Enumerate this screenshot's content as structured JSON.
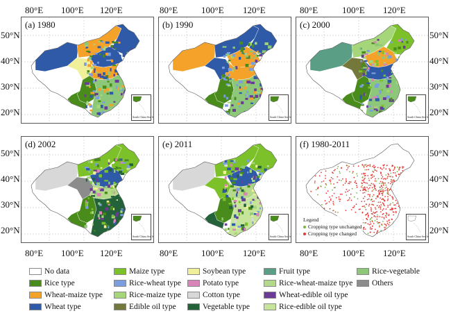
{
  "axes": {
    "top_lon": [
      "80°E",
      "100°E",
      "120°E"
    ],
    "bottom_lon": [
      "80°E",
      "100°E",
      "120°E"
    ],
    "lat": [
      "50°N",
      "40°N",
      "30°N",
      "20°N"
    ]
  },
  "panels": [
    {
      "label": "(a) 1980",
      "scheme": "a"
    },
    {
      "label": "(b) 1990",
      "scheme": "b"
    },
    {
      "label": "(c) 2000",
      "scheme": "c"
    },
    {
      "label": "(d) 2002",
      "scheme": "d"
    },
    {
      "label": "(e) 2011",
      "scheme": "e"
    },
    {
      "label": "(f) 1980-2011",
      "scheme": "f"
    }
  ],
  "inset_label": "South China Sea Islands",
  "change_legend": {
    "title": "Legend",
    "unchanged": {
      "label": "Cropping type unchanged",
      "color": "#7cb342"
    },
    "changed": {
      "label": "Cropping type changed",
      "color": "#e53935"
    }
  },
  "legend": [
    {
      "label": "No data",
      "color": "#ffffff"
    },
    {
      "label": "Rice type",
      "color": "#4a8c1c"
    },
    {
      "label": "Wheat-maize type",
      "color": "#f5a22a"
    },
    {
      "label": "Wheat type",
      "color": "#2e5aa8"
    },
    {
      "label": "Maize type",
      "color": "#7cc12a"
    },
    {
      "label": "Rice-wheat type",
      "color": "#7b9ede"
    },
    {
      "label": "Rice-maize type",
      "color": "#a5d67a"
    },
    {
      "label": "Edible oil type",
      "color": "#74783a"
    },
    {
      "label": "Soybean type",
      "color": "#f0f09a"
    },
    {
      "label": "Potato type",
      "color": "#d984b8"
    },
    {
      "label": "Cotton type",
      "color": "#d8d8d8"
    },
    {
      "label": "Vegetable type",
      "color": "#24623a"
    },
    {
      "label": "Fruit type",
      "color": "#5a9e86"
    },
    {
      "label": "Rice-wheat-maize tpye",
      "color": "#b5d98a"
    },
    {
      "label": "Wheat-edible oil type",
      "color": "#6a3c96"
    },
    {
      "label": "Rice-edible oil type",
      "color": "#c6e59a"
    },
    {
      "label": "Rice-vegetable",
      "color": "#8dc87a"
    },
    {
      "label": "Others",
      "color": "#8c8c8c"
    }
  ]
}
